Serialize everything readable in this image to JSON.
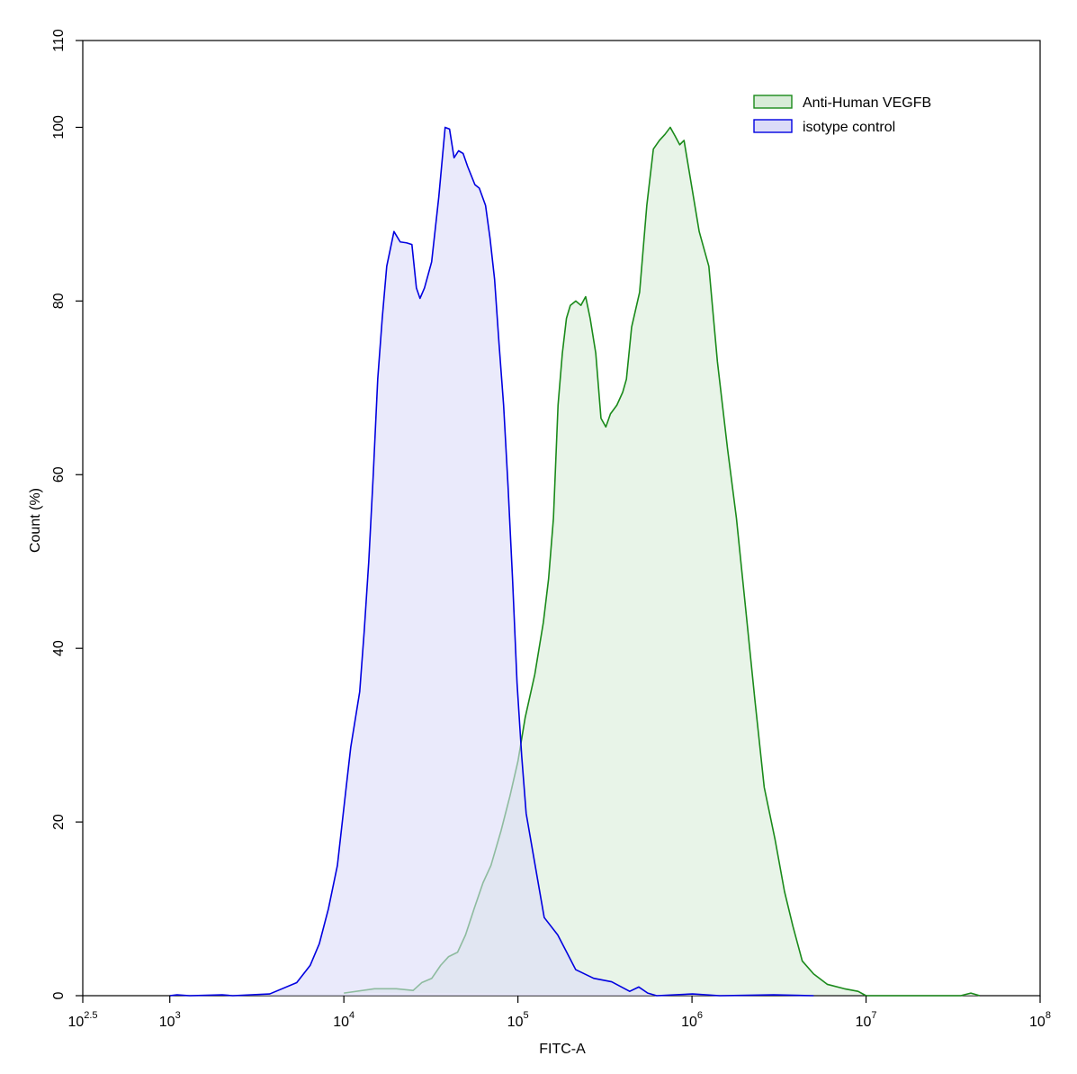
{
  "chart_data": {
    "type": "area",
    "xlabel": "FITC-A",
    "ylabel": "Count  (%)",
    "xscale": "log",
    "xlim": [
      316.2278,
      100000000
    ],
    "ylim": [
      0,
      110
    ],
    "xticks": [
      {
        "value": 316.2278,
        "label": "10",
        "power": "2.5"
      },
      {
        "value": 1000,
        "label": "10",
        "power": "3"
      },
      {
        "value": 10000,
        "label": "10",
        "power": "4"
      },
      {
        "value": 100000,
        "label": "10",
        "power": "5"
      },
      {
        "value": 1000000,
        "label": "10",
        "power": "6"
      },
      {
        "value": 10000000,
        "label": "10",
        "power": "7"
      },
      {
        "value": 100000000,
        "label": "10",
        "power": "8"
      }
    ],
    "yticks": [
      0,
      20,
      40,
      60,
      80,
      100,
      110
    ],
    "legend": "upper right",
    "series": [
      {
        "name": "Anti-Human VEGFB",
        "color": "#1a8a1a",
        "fill": "#d8ecd8",
        "x": [
          10000,
          15000,
          20000,
          25000,
          28000,
          32000,
          36000,
          40000,
          45000,
          50000,
          56000,
          63000,
          70000,
          80000,
          90000,
          100000,
          110000,
          125000,
          140000,
          150000,
          160000,
          170000,
          180000,
          190000,
          200000,
          215000,
          230000,
          245000,
          260000,
          280000,
          300000,
          320000,
          340000,
          370000,
          400000,
          420000,
          450000,
          500000,
          550000,
          600000,
          650000,
          700000,
          750000,
          800000,
          850000,
          900000,
          1000000,
          1100000,
          1250000,
          1400000,
          1600000,
          1800000,
          2000000,
          2300000,
          2600000,
          3000000,
          3400000,
          3800000,
          4300000,
          5000000,
          6000000,
          7500000,
          9000000,
          10000000,
          35000000,
          40000000,
          45000000
        ],
        "values": [
          0.3,
          0.8,
          0.8,
          0.6,
          1.5,
          2,
          3.5,
          4.5,
          5,
          7,
          10,
          13,
          15,
          19,
          23,
          27,
          32,
          37,
          43,
          48,
          55,
          68,
          74,
          78,
          79.5,
          80,
          79.5,
          80.5,
          78,
          74,
          66.5,
          65.5,
          67,
          68,
          69.5,
          71,
          77,
          81,
          91,
          97.5,
          98.5,
          99.2,
          100,
          99,
          98,
          98.5,
          93,
          88,
          84,
          73,
          63,
          55,
          46,
          34,
          24,
          18,
          12,
          8,
          4,
          2.5,
          1.3,
          0.8,
          0.5,
          0,
          0,
          0.3,
          0
        ]
      },
      {
        "name": "isotype control",
        "color": "#0000e0",
        "fill": "#dcdcf8",
        "x": [
          1000,
          1100,
          1300,
          2000,
          2300,
          3750,
          5360,
          6410,
          7230,
          8150,
          9180,
          10310,
          10950,
          12330,
          13090,
          13900,
          14750,
          15650,
          16610,
          17630,
          19400,
          21080,
          22910,
          24600,
          26110,
          27380,
          29040,
          31930,
          35110,
          38180,
          40470,
          42960,
          45600,
          48410,
          51400,
          56600,
          59980,
          65170,
          69170,
          73430,
          77940,
          82740,
          87730,
          93120,
          98860,
          105100,
          111500,
          125600,
          141600,
          169300,
          190700,
          214700,
          272300,
          345600,
          438600,
          494300,
          556700,
          626900,
          1008000,
          1443000,
          2945000,
          5000000
        ],
        "values": [
          0,
          0.1,
          0,
          0.1,
          0,
          0.2,
          1.5,
          3.5,
          6,
          10,
          15,
          24,
          28.6,
          35,
          42,
          50,
          60,
          71,
          78,
          84,
          88,
          86.8,
          86.7,
          86.5,
          81.5,
          80.3,
          81.5,
          84.5,
          92,
          100,
          99.8,
          96.5,
          97.3,
          97,
          95.5,
          93.4,
          93,
          91,
          87.2,
          82.5,
          75,
          68,
          58.7,
          48,
          36,
          27.6,
          21,
          15,
          9,
          7,
          5,
          3,
          2,
          1.6,
          0.5,
          1,
          0.3,
          0,
          0.2,
          0,
          0.1,
          0
        ]
      }
    ]
  }
}
